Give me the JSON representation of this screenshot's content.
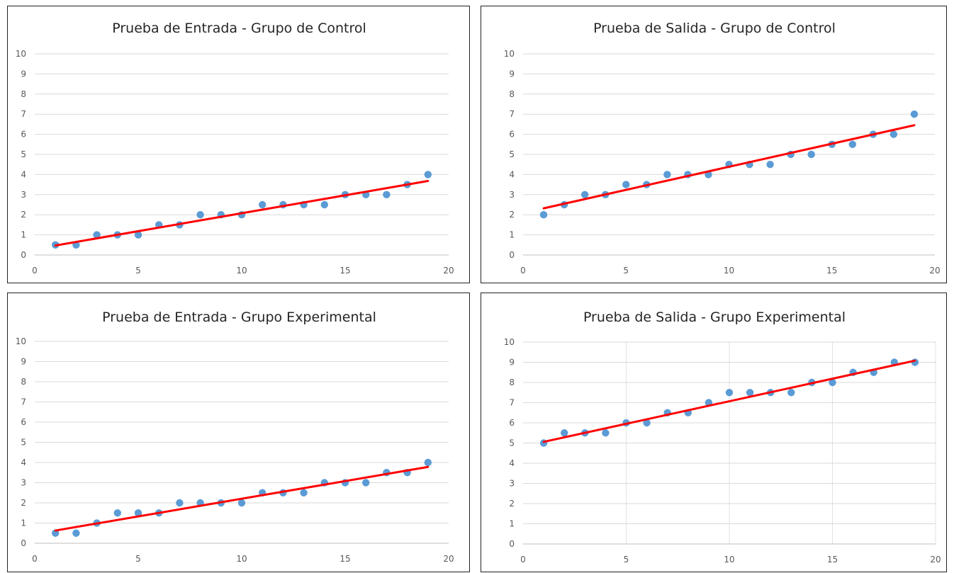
{
  "chart_data": [
    {
      "type": "scatter",
      "title": "Prueba de Entrada - Grupo de Control",
      "xlim": [
        0,
        20
      ],
      "ylim": [
        0,
        10
      ],
      "x_ticks": [
        "0",
        "5",
        "10",
        "15",
        "20"
      ],
      "y_ticks": [
        "0",
        "1",
        "2",
        "3",
        "4",
        "5",
        "6",
        "7",
        "8",
        "9",
        "10"
      ],
      "vertical_grid": false,
      "horizontal_grid": true,
      "colors": {
        "points": "#5b9bd5",
        "trendline": "#ff0000"
      },
      "x": [
        1,
        2,
        3,
        4,
        5,
        6,
        7,
        8,
        9,
        10,
        11,
        12,
        13,
        14,
        15,
        16,
        17,
        18,
        19
      ],
      "y": [
        0.5,
        0.5,
        1,
        1,
        1,
        1.5,
        1.5,
        2,
        2,
        2,
        2.5,
        2.5,
        2.5,
        2.5,
        3,
        3,
        3,
        3.5,
        4
      ],
      "trendline": {
        "type": "linear",
        "x": [
          1,
          19
        ],
        "y": [
          0.47,
          3.68
        ]
      }
    },
    {
      "type": "scatter",
      "title": "Prueba de Salida - Grupo de Control",
      "xlim": [
        0,
        20
      ],
      "ylim": [
        0,
        10
      ],
      "x_ticks": [
        "0",
        "5",
        "10",
        "15",
        "20"
      ],
      "y_ticks": [
        "0",
        "1",
        "2",
        "3",
        "4",
        "5",
        "6",
        "7",
        "8",
        "9",
        "10"
      ],
      "vertical_grid": false,
      "horizontal_grid": true,
      "colors": {
        "points": "#5b9bd5",
        "trendline": "#ff0000"
      },
      "x": [
        1,
        2,
        3,
        4,
        5,
        6,
        7,
        8,
        9,
        10,
        11,
        12,
        13,
        14,
        15,
        16,
        17,
        18,
        19
      ],
      "y": [
        2,
        2.5,
        3,
        3,
        3.5,
        3.5,
        4,
        4,
        4,
        4.5,
        4.5,
        4.5,
        5,
        5,
        5.5,
        5.5,
        6,
        6,
        7
      ],
      "trendline": {
        "type": "linear",
        "x": [
          1,
          19
        ],
        "y": [
          2.32,
          6.45
        ]
      }
    },
    {
      "type": "scatter",
      "title": "Prueba de Entrada - Grupo Experimental",
      "xlim": [
        0,
        20
      ],
      "ylim": [
        0,
        10
      ],
      "x_ticks": [
        "0",
        "5",
        "10",
        "15",
        "20"
      ],
      "y_ticks": [
        "0",
        "1",
        "2",
        "3",
        "4",
        "5",
        "6",
        "7",
        "8",
        "9",
        "10"
      ],
      "vertical_grid": false,
      "horizontal_grid": true,
      "colors": {
        "points": "#5b9bd5",
        "trendline": "#ff0000"
      },
      "x": [
        1,
        2,
        3,
        4,
        5,
        6,
        7,
        8,
        9,
        10,
        11,
        12,
        13,
        14,
        15,
        16,
        17,
        18,
        19
      ],
      "y": [
        0.5,
        0.5,
        1,
        1.5,
        1.5,
        1.5,
        2,
        2,
        2,
        2,
        2.5,
        2.5,
        2.5,
        3,
        3,
        3,
        3.5,
        3.5,
        4
      ],
      "trendline": {
        "type": "linear",
        "x": [
          1,
          19
        ],
        "y": [
          0.63,
          3.78
        ]
      }
    },
    {
      "type": "scatter",
      "title": "Prueba de Salida - Grupo Experimental",
      "xlim": [
        0,
        20
      ],
      "ylim": [
        0,
        10
      ],
      "x_ticks": [
        "0",
        "5",
        "10",
        "15",
        "20"
      ],
      "y_ticks": [
        "0",
        "1",
        "2",
        "3",
        "4",
        "5",
        "6",
        "7",
        "8",
        "9",
        "10"
      ],
      "vertical_grid": true,
      "horizontal_grid": true,
      "colors": {
        "points": "#5b9bd5",
        "trendline": "#ff0000"
      },
      "x": [
        1,
        2,
        3,
        4,
        5,
        6,
        7,
        8,
        9,
        10,
        11,
        12,
        13,
        14,
        15,
        16,
        17,
        18,
        19
      ],
      "y": [
        5,
        5.5,
        5.5,
        5.5,
        6,
        6,
        6.5,
        6.5,
        7,
        7.5,
        7.5,
        7.5,
        7.5,
        8,
        8,
        8.5,
        8.5,
        9,
        9
      ],
      "trendline": {
        "type": "linear",
        "x": [
          1,
          19
        ],
        "y": [
          5.06,
          9.08
        ]
      }
    }
  ]
}
